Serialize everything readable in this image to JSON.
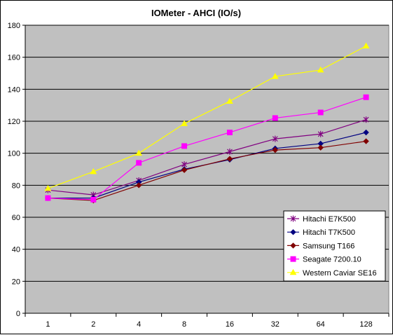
{
  "chart_data": {
    "type": "line",
    "title": "IOMeter - AHCI (IO/s)",
    "xlabel": "",
    "ylabel": "",
    "categories": [
      "1",
      "2",
      "4",
      "8",
      "16",
      "32",
      "64",
      "128"
    ],
    "ylim": [
      0,
      180
    ],
    "yticks": [
      0,
      20,
      40,
      60,
      80,
      100,
      120,
      140,
      160,
      180
    ],
    "grid": true,
    "legend_position": "bottom-right",
    "plot_background": "#c0c0c0",
    "series": [
      {
        "name": "Hitachi E7K500",
        "color": "#800080",
        "marker": "star",
        "values": [
          77,
          74,
          83,
          93,
          101,
          109,
          112,
          121
        ]
      },
      {
        "name": "Hitachi T7K500",
        "color": "#000080",
        "marker": "diamond",
        "values": [
          72,
          72,
          82,
          90,
          96,
          103,
          106,
          113
        ]
      },
      {
        "name": "Samsung T166",
        "color": "#800000",
        "marker": "diamond",
        "values": [
          72,
          70.5,
          80,
          89.5,
          96.5,
          102,
          103.5,
          107.5
        ]
      },
      {
        "name": "Seagate 7200.10",
        "color": "#ff00ff",
        "marker": "square",
        "values": [
          72,
          71,
          94,
          104.5,
          113,
          122,
          125.5,
          135
        ]
      },
      {
        "name": "Western Caviar SE16",
        "color": "#ffff00",
        "marker": "triangle",
        "values": [
          78,
          88.5,
          100,
          118.5,
          132.5,
          148,
          152,
          167
        ]
      }
    ]
  }
}
